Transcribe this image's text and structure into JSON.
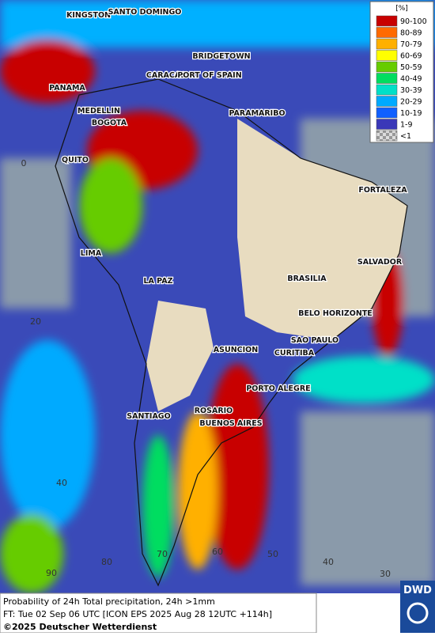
{
  "legend": {
    "unit": "[%]",
    "items": [
      {
        "label": "90-100",
        "color": "#c80000"
      },
      {
        "label": "80-89",
        "color": "#ff6a00"
      },
      {
        "label": "70-79",
        "color": "#ffb000"
      },
      {
        "label": "60-69",
        "color": "#ffff00"
      },
      {
        "label": "50-59",
        "color": "#66cc00"
      },
      {
        "label": "40-49",
        "color": "#00dd60"
      },
      {
        "label": "30-39",
        "color": "#00e0c8"
      },
      {
        "label": "20-29",
        "color": "#00aaff"
      },
      {
        "label": "10-19",
        "color": "#1060ff"
      },
      {
        "label": "1-9",
        "color": "#3a38b8"
      },
      {
        "label": "<1",
        "color": "#b0b0b0"
      }
    ]
  },
  "cities": [
    "KINGSTON",
    "SANTO DOMINGO",
    "BRIDGETOWN",
    "CARACAS",
    "PORT OF SPAIN",
    "PANAMA",
    "MEDELLIN",
    "BOGOTA",
    "PARAMARIBO",
    "QUITO",
    "FORTALEZA",
    "LIMA",
    "SALVADOR",
    "LA PAZ",
    "BRASILIA",
    "BELO HORIZONTE",
    "SAO PAULO",
    "ASUNCION",
    "CURITIBA",
    "PORTO ALEGRE",
    "ROSARIO",
    "SANTIAGO",
    "BUENOS AIRES"
  ],
  "grid_labels": [
    "0",
    "20",
    "40",
    "90",
    "80",
    "70",
    "60",
    "50",
    "40",
    "30"
  ],
  "footer": {
    "line1": "Probability of 24h Total precipitation, 24h >1mm",
    "line2": "FT: Tue 02 Sep 06 UTC [ICON EPS 2025 Aug 28 12UTC +114h]",
    "line3": "©2025 Deutscher Wetterdienst"
  },
  "logo": "DWD"
}
